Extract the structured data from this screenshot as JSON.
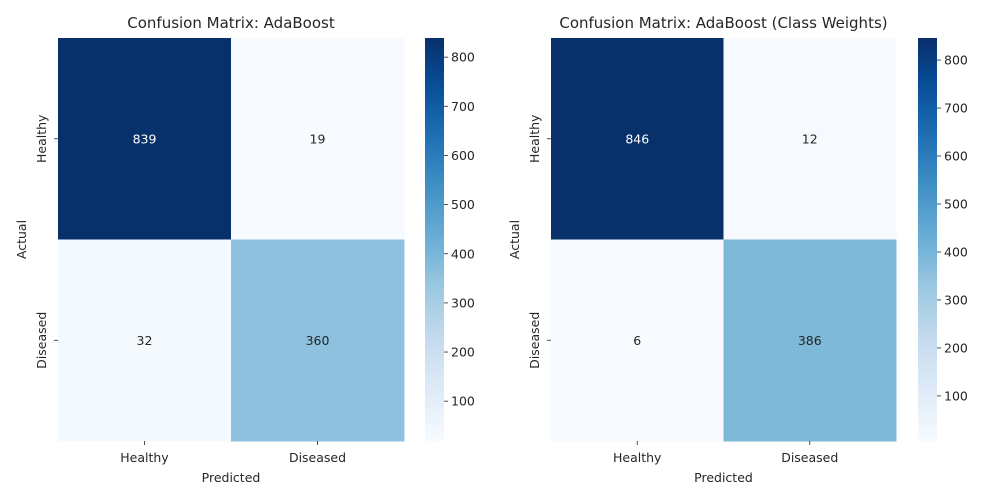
{
  "chart_data": [
    {
      "type": "heatmap",
      "title": "Confusion Matrix: AdaBoost",
      "xlabel": "Predicted",
      "ylabel": "Actual",
      "x_categories": [
        "Healthy",
        "Diseased"
      ],
      "y_categories": [
        "Healthy",
        "Diseased"
      ],
      "values": [
        [
          839,
          19
        ],
        [
          32,
          360
        ]
      ],
      "colormap": "Blues",
      "colorbar": {
        "min": 19,
        "max": 839,
        "ticks": [
          100,
          200,
          300,
          400,
          500,
          600,
          700,
          800
        ]
      }
    },
    {
      "type": "heatmap",
      "title": "Confusion Matrix: AdaBoost (Class Weights)",
      "xlabel": "Predicted",
      "ylabel": "Actual",
      "x_categories": [
        "Healthy",
        "Diseased"
      ],
      "y_categories": [
        "Healthy",
        "Diseased"
      ],
      "values": [
        [
          846,
          12
        ],
        [
          6,
          386
        ]
      ],
      "colormap": "Blues",
      "colorbar": {
        "min": 6,
        "max": 846,
        "ticks": [
          100,
          200,
          300,
          400,
          500,
          600,
          700,
          800
        ]
      }
    }
  ],
  "colors": {
    "blues": [
      "#f7fbff",
      "#deebf7",
      "#c6dbef",
      "#9ecae1",
      "#6baed6",
      "#4292c6",
      "#2171b5",
      "#08519c",
      "#08306b"
    ],
    "dark_text": "#262626",
    "light_text": "#ffffff"
  }
}
